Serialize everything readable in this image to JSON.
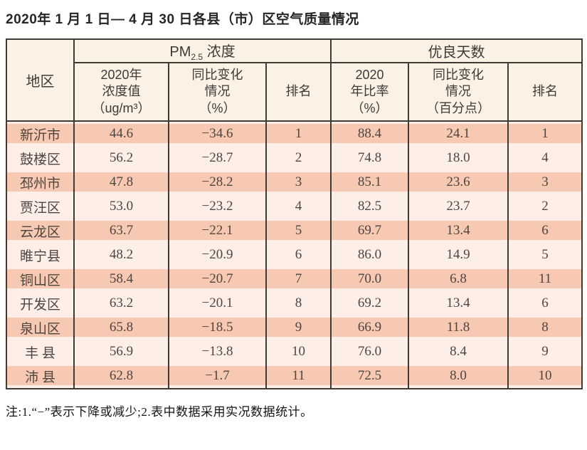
{
  "page": {
    "title": "2020年 1 月 1 日— 4 月 30 日各县（市）区空气质量情况",
    "note": "注:1.“−”表示下降或减少;2.表中数据采用实况数据统计。"
  },
  "table": {
    "corner_header": "地区",
    "group_headers": {
      "pm25_prefix": "PM",
      "pm25_sub": "2.5",
      "pm25_suffix": " 浓度",
      "good_days": "优良天数"
    },
    "sub_headers": {
      "pm25_value": "2020年\n浓度值\n（ug/m³）",
      "pm25_change": "同比变化\n情况\n（%）",
      "pm25_rank": "排名",
      "good_rate": "2020\n年比率\n（%）",
      "good_change": "同比变化\n情况\n（百分点）",
      "good_rank": "排名"
    },
    "field_names": [
      "region",
      "pm25-value",
      "pm25-change",
      "pm25-rank",
      "good-rate",
      "good-change",
      "good-rank"
    ]
  },
  "colors": {
    "header_bg": "#fcf1e5",
    "stripe_salmon": "#f7c8b2",
    "stripe_light": "#fdefe8",
    "border": "#403a35"
  },
  "chart_data": {
    "type": "table",
    "title": "2020年1月1日—4月30日各县（市）区空气质量情况",
    "column_groups": [
      "PM2.5浓度",
      "优良天数"
    ],
    "columns": [
      "地区",
      "2020年浓度值（ug/m³）",
      "同比变化情况（%）",
      "排名",
      "2020年比率（%）",
      "同比变化情况（百分点）",
      "排名"
    ],
    "rows": [
      [
        "新沂市",
        44.6,
        -34.6,
        1,
        88.4,
        24.1,
        1
      ],
      [
        "鼓楼区",
        56.2,
        -28.7,
        2,
        74.8,
        18.0,
        4
      ],
      [
        "邳州市",
        47.8,
        -28.2,
        3,
        85.1,
        23.6,
        3
      ],
      [
        "贾汪区",
        53.0,
        -23.2,
        4,
        82.5,
        23.7,
        2
      ],
      [
        "云龙区",
        63.7,
        -22.1,
        5,
        69.7,
        13.4,
        6
      ],
      [
        "睢宁县",
        48.2,
        -20.9,
        6,
        86.0,
        14.9,
        5
      ],
      [
        "铜山区",
        58.4,
        -20.7,
        7,
        70.0,
        6.8,
        11
      ],
      [
        "开发区",
        63.2,
        -20.1,
        8,
        69.2,
        13.4,
        6
      ],
      [
        "泉山区",
        65.8,
        -18.5,
        9,
        66.9,
        11.8,
        8
      ],
      [
        "丰 县",
        56.9,
        -13.8,
        10,
        76.0,
        8.4,
        9
      ],
      [
        "沛 县",
        62.8,
        -1.7,
        11,
        72.5,
        8.0,
        10
      ]
    ],
    "note": "注:1.“−”表示下降或减少;2.表中数据采用实况数据统计。"
  }
}
